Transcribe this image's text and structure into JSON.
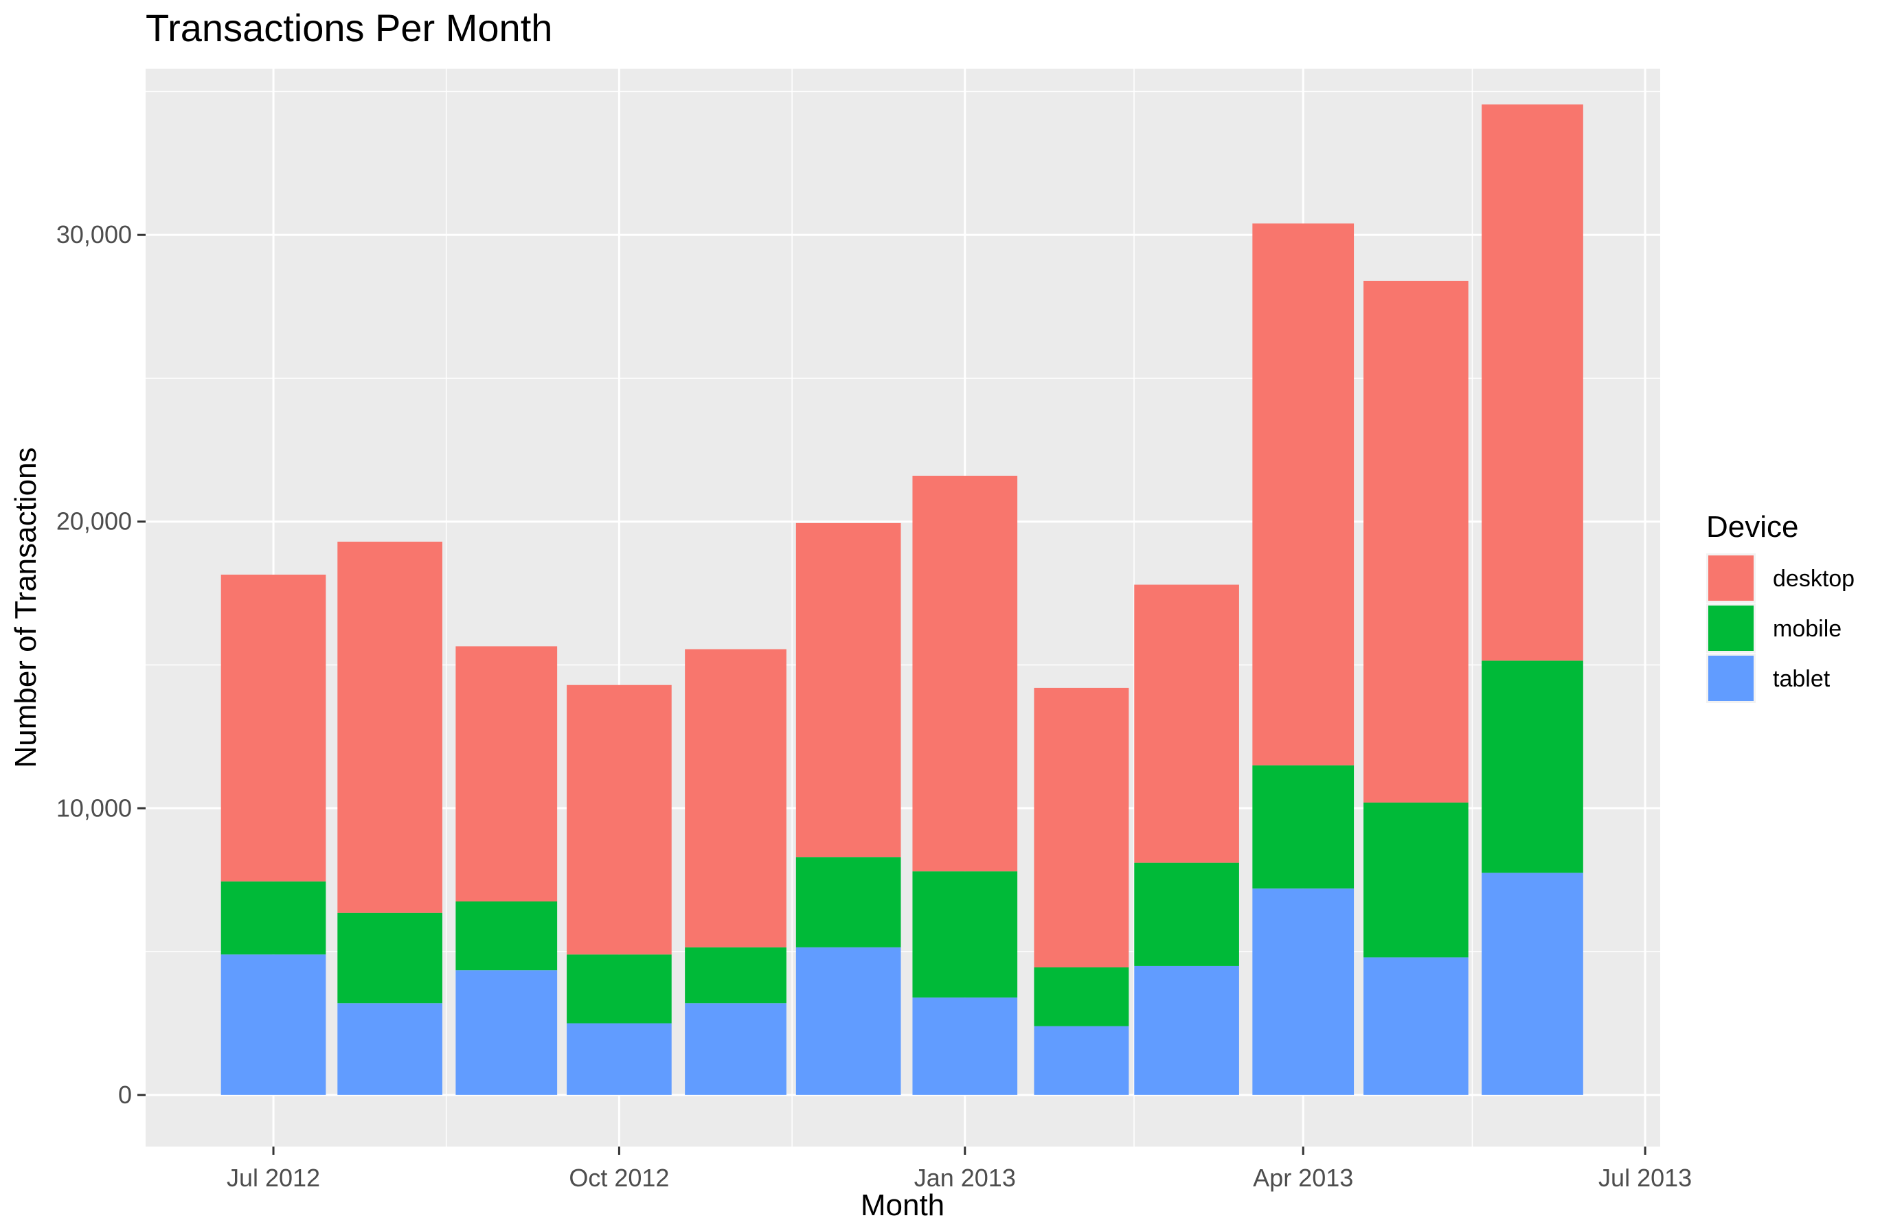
{
  "chart_data": {
    "type": "bar",
    "stacked": true,
    "title": "Transactions Per Month",
    "xlabel": "Month",
    "ylabel": "Number of Transactions",
    "x_axis": {
      "type": "date",
      "range": [
        "2012-05-28",
        "2013-07-05"
      ],
      "ticks": [
        {
          "date": "2012-07-01",
          "label": "Jul 2012"
        },
        {
          "date": "2012-10-01",
          "label": "Oct 2012"
        },
        {
          "date": "2013-01-01",
          "label": "Jan 2013"
        },
        {
          "date": "2013-04-01",
          "label": "Apr 2013"
        },
        {
          "date": "2013-07-01",
          "label": "Jul 2013"
        }
      ],
      "minor_ticks": [
        "2012-08-16",
        "2012-11-16",
        "2013-02-15",
        "2013-05-16"
      ]
    },
    "y_axis": {
      "ylim": [
        -1800,
        35800
      ],
      "ticks": [
        {
          "value": 0,
          "label": "0"
        },
        {
          "value": 10000,
          "label": "10,000"
        },
        {
          "value": 20000,
          "label": "20,000"
        },
        {
          "value": 30000,
          "label": "30,000"
        }
      ],
      "minor_ticks": [
        5000,
        15000,
        25000,
        35000
      ]
    },
    "grid": true,
    "legend": {
      "title": "Device",
      "position": "right"
    },
    "bars": [
      {
        "date": "2012-07-01",
        "days": 31
      },
      {
        "date": "2012-08-01",
        "days": 31
      },
      {
        "date": "2012-09-01",
        "days": 30
      },
      {
        "date": "2012-10-01",
        "days": 31
      },
      {
        "date": "2012-11-01",
        "days": 30
      },
      {
        "date": "2012-12-01",
        "days": 31
      },
      {
        "date": "2013-01-01",
        "days": 31
      },
      {
        "date": "2013-02-01",
        "days": 28
      },
      {
        "date": "2013-03-01",
        "days": 31
      },
      {
        "date": "2013-04-01",
        "days": 30
      },
      {
        "date": "2013-05-01",
        "days": 31
      },
      {
        "date": "2013-06-01",
        "days": 30
      }
    ],
    "series": [
      {
        "name": "tablet",
        "color": "#619CFF",
        "values": [
          4900,
          3200,
          4350,
          2500,
          3200,
          5150,
          3400,
          2400,
          4500,
          7200,
          4800,
          7750
        ]
      },
      {
        "name": "mobile",
        "color": "#00BA38",
        "values": [
          2550,
          3150,
          2400,
          2400,
          1950,
          3150,
          4400,
          2050,
          3600,
          4300,
          5400,
          7400
        ]
      },
      {
        "name": "desktop",
        "color": "#F8766D",
        "values": [
          10700,
          12950,
          8900,
          9400,
          10400,
          11650,
          13800,
          9750,
          9700,
          18900,
          18200,
          19400
        ]
      }
    ],
    "legend_order": [
      "desktop",
      "mobile",
      "tablet"
    ]
  }
}
